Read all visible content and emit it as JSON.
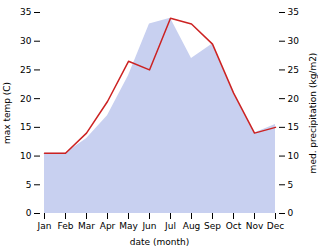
{
  "chart_data": {
    "type": "line",
    "categories": [
      "Jan",
      "Feb",
      "Mar",
      "Apr",
      "May",
      "Jun",
      "Jul",
      "Aug",
      "Sep",
      "Oct",
      "Nov",
      "Dec"
    ],
    "xlabel": "date (month)",
    "ylabel": "max temp (C)",
    "y2label": "med. precipitation (kg/m2)",
    "series": [
      {
        "type": "area",
        "axis": "y2",
        "color": "#c8d0f0",
        "values": [
          10.5,
          10.5,
          13.0,
          17.0,
          24.0,
          33.0,
          34.0,
          27.0,
          29.5,
          21.0,
          14.0,
          15.5
        ]
      },
      {
        "type": "line",
        "color": "#cc2222",
        "values": [
          10.5,
          10.5,
          14.0,
          19.5,
          26.5,
          25.0,
          34.0,
          33.0,
          29.5,
          21.0,
          14.0,
          15.0
        ]
      }
    ],
    "ylim": [
      0,
      35
    ],
    "yticks": [
      0,
      5,
      10,
      15,
      20,
      25,
      30,
      35
    ],
    "y2lim": [
      0,
      35
    ],
    "y2ticks": [
      0,
      5,
      10,
      15,
      20,
      25,
      30,
      35
    ]
  }
}
